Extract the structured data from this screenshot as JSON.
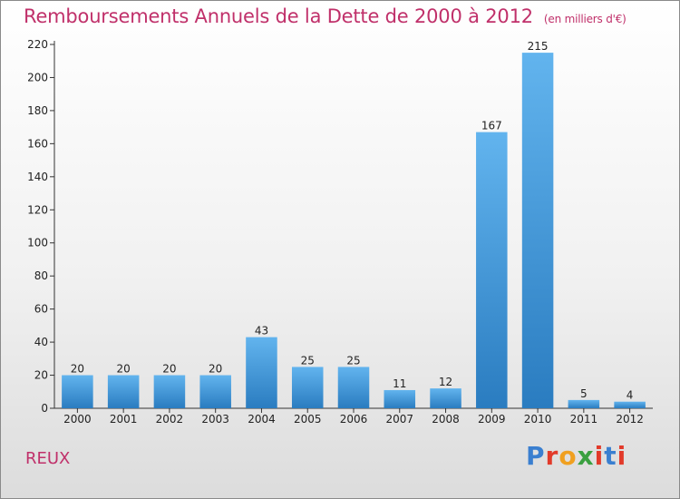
{
  "header": {
    "title": "Remboursements Annuels de la Dette de 2000 à 2012",
    "unit": "(en milliers d'€)"
  },
  "footer": {
    "place": "REUX",
    "logo_letters": [
      "P",
      "r",
      "o",
      "x",
      "i",
      "t",
      "i"
    ],
    "logo_colors": [
      "#3a7fd0",
      "#e23a2a",
      "#f0a020",
      "#3aa040",
      "#e23a2a",
      "#3a7fd0",
      "#e23a2a"
    ]
  },
  "colors": {
    "title": "#c0306a",
    "bar_top": "#62b4ee",
    "bar_bottom": "#2a7cc0"
  },
  "chart_data": {
    "type": "bar",
    "title": "Remboursements Annuels de la Dette de 2000 à 2012",
    "subtitle": "(en milliers d'€)",
    "xlabel": "",
    "ylabel": "",
    "categories": [
      "2000",
      "2001",
      "2002",
      "2003",
      "2004",
      "2005",
      "2006",
      "2007",
      "2008",
      "2009",
      "2010",
      "2011",
      "2012"
    ],
    "values": [
      20,
      20,
      20,
      20,
      43,
      25,
      25,
      11,
      12,
      167,
      215,
      5,
      4
    ],
    "ylim": [
      0,
      220
    ],
    "yticks": [
      0,
      20,
      40,
      60,
      80,
      100,
      120,
      140,
      160,
      180,
      200,
      220
    ],
    "grid": false,
    "legend": "none"
  }
}
